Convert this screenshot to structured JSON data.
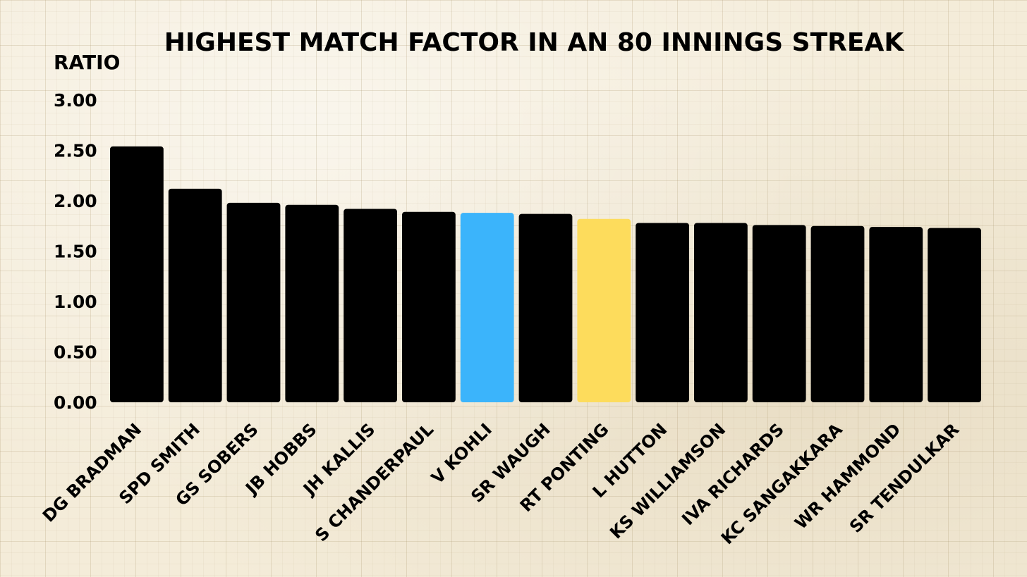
{
  "chart_data": {
    "type": "bar",
    "title": "HIGHEST MATCH FACTOR IN AN 80 INNINGS STREAK",
    "ylabel": "RATIO",
    "xlabel": "",
    "ylim": [
      0,
      3
    ],
    "yticks": [
      "0.00",
      "0.50",
      "1.00",
      "1.50",
      "2.00",
      "2.50",
      "3.00"
    ],
    "ytick_values": [
      0,
      0.5,
      1,
      1.5,
      2,
      2.5,
      3
    ],
    "grid": true,
    "categories": [
      "DG BRADMAN",
      "SPD SMITH",
      "GS SOBERS",
      "JB HOBBS",
      "JH KALLIS",
      "S CHANDERPAUL",
      "V KOHLI",
      "SR WAUGH",
      "RT PONTING",
      "L HUTTON",
      "KS WILLIAMSON",
      "IVA RICHARDS",
      "KC SANGAKKARA",
      "WR HAMMOND",
      "SR TENDULKAR"
    ],
    "values": [
      2.54,
      2.12,
      1.98,
      1.96,
      1.92,
      1.89,
      1.88,
      1.87,
      1.82,
      1.78,
      1.78,
      1.76,
      1.75,
      1.74,
      1.73
    ],
    "colors": [
      "#000000",
      "#000000",
      "#000000",
      "#000000",
      "#000000",
      "#000000",
      "#3bb4fb",
      "#000000",
      "#fddc5c",
      "#000000",
      "#000000",
      "#000000",
      "#000000",
      "#000000",
      "#000000"
    ]
  }
}
